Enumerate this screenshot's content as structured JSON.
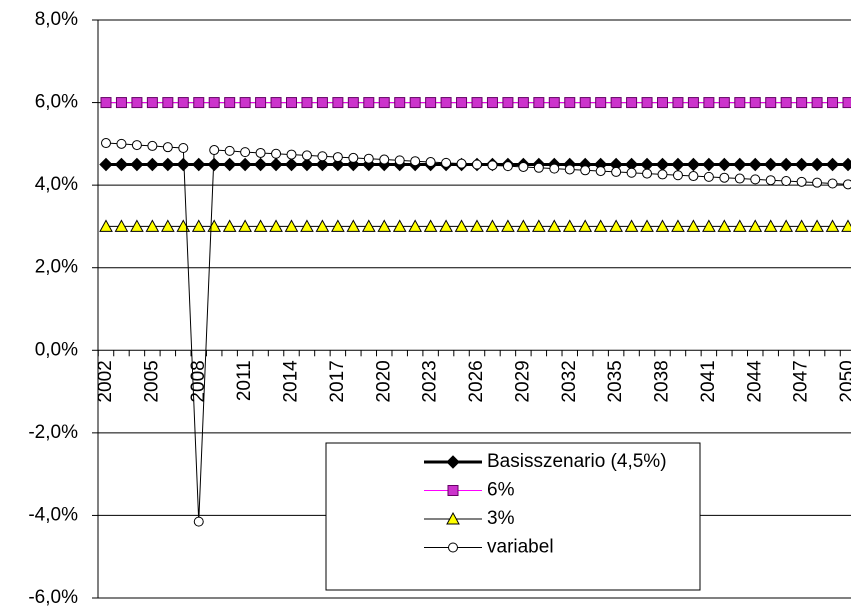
{
  "chart_data": {
    "type": "line",
    "categories": [
      "2002",
      null,
      null,
      "2005",
      null,
      null,
      "2008",
      null,
      null,
      "2011",
      null,
      null,
      "2014",
      null,
      null,
      "2017",
      null,
      null,
      "2020",
      null,
      null,
      "2023",
      null,
      null,
      "2026",
      null,
      null,
      "2029",
      null,
      null,
      "2032",
      null,
      null,
      "2035",
      null,
      null,
      "2038",
      null,
      null,
      "2041",
      null,
      null,
      "2044",
      null,
      null,
      "2047",
      null,
      null,
      "2050"
    ],
    "ylim": [
      -6,
      8
    ],
    "yticks": [
      {
        "value": -6,
        "label": "-6,0%"
      },
      {
        "value": -4,
        "label": "-4,0%"
      },
      {
        "value": -2,
        "label": "-2,0%"
      },
      {
        "value": 0,
        "label": "0,0%"
      },
      {
        "value": 2,
        "label": "2,0%"
      },
      {
        "value": 4,
        "label": "4,0%"
      },
      {
        "value": 6,
        "label": "6,0%"
      },
      {
        "value": 8,
        "label": "8,0%"
      }
    ],
    "grid": true,
    "legend": "bottom-center",
    "series": [
      {
        "name": "Basisszenario (4,5%)",
        "color": "#000000",
        "marker": "diamond",
        "marker_fill": "#000000",
        "line_width": 3,
        "values": [
          4.5,
          4.5,
          4.5,
          4.5,
          4.5,
          4.5,
          4.5,
          4.5,
          4.5,
          4.5,
          4.5,
          4.5,
          4.5,
          4.5,
          4.5,
          4.5,
          4.5,
          4.5,
          4.5,
          4.5,
          4.5,
          4.5,
          4.5,
          4.5,
          4.5,
          4.5,
          4.5,
          4.5,
          4.5,
          4.5,
          4.5,
          4.5,
          4.5,
          4.5,
          4.5,
          4.5,
          4.5,
          4.5,
          4.5,
          4.5,
          4.5,
          4.5,
          4.5,
          4.5,
          4.5,
          4.5,
          4.5,
          4.5,
          4.5
        ]
      },
      {
        "name": "6%",
        "color": "#ff00ff",
        "marker": "square",
        "marker_fill": "#cc33cc",
        "line_width": 1,
        "values": [
          6,
          6,
          6,
          6,
          6,
          6,
          6,
          6,
          6,
          6,
          6,
          6,
          6,
          6,
          6,
          6,
          6,
          6,
          6,
          6,
          6,
          6,
          6,
          6,
          6,
          6,
          6,
          6,
          6,
          6,
          6,
          6,
          6,
          6,
          6,
          6,
          6,
          6,
          6,
          6,
          6,
          6,
          6,
          6,
          6,
          6,
          6,
          6,
          6
        ]
      },
      {
        "name": "3%",
        "color": "#000000",
        "marker": "triangle",
        "marker_fill": "#ffff00",
        "line_width": 1,
        "values": [
          3,
          3,
          3,
          3,
          3,
          3,
          3,
          3,
          3,
          3,
          3,
          3,
          3,
          3,
          3,
          3,
          3,
          3,
          3,
          3,
          3,
          3,
          3,
          3,
          3,
          3,
          3,
          3,
          3,
          3,
          3,
          3,
          3,
          3,
          3,
          3,
          3,
          3,
          3,
          3,
          3,
          3,
          3,
          3,
          3,
          3,
          3,
          3,
          3
        ]
      },
      {
        "name": "variabel",
        "color": "#000000",
        "marker": "circle",
        "marker_fill": "#ffffff",
        "line_width": 1,
        "values": [
          5.02,
          5.0,
          4.97,
          4.95,
          4.92,
          4.9,
          -4.15,
          4.85,
          4.83,
          4.8,
          4.78,
          4.76,
          4.74,
          4.72,
          4.7,
          4.68,
          4.66,
          4.64,
          4.62,
          4.6,
          4.58,
          4.56,
          4.54,
          4.52,
          4.5,
          4.48,
          4.46,
          4.44,
          4.42,
          4.4,
          4.38,
          4.36,
          4.34,
          4.32,
          4.3,
          4.28,
          4.26,
          4.24,
          4.22,
          4.2,
          4.18,
          4.16,
          4.14,
          4.12,
          4.1,
          4.08,
          4.06,
          4.04,
          4.02
        ]
      }
    ]
  }
}
